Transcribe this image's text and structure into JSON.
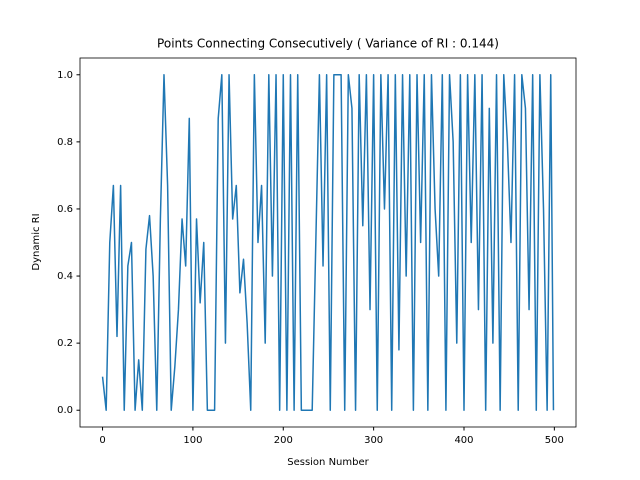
{
  "chart_data": {
    "type": "line",
    "title": "Points Connecting Consecutively ( Variance of RI : 0.144)",
    "xlabel": "Session Number",
    "ylabel": "Dynamic RI",
    "x": [
      0,
      4,
      8,
      12,
      16,
      20,
      24,
      28,
      32,
      36,
      40,
      44,
      48,
      52,
      56,
      60,
      64,
      68,
      72,
      76,
      80,
      84,
      88,
      92,
      96,
      100,
      104,
      108,
      112,
      116,
      120,
      124,
      128,
      132,
      136,
      140,
      144,
      148,
      152,
      156,
      160,
      164,
      168,
      172,
      176,
      180,
      184,
      188,
      192,
      196,
      200,
      204,
      208,
      212,
      216,
      220,
      224,
      228,
      232,
      236,
      240,
      244,
      248,
      252,
      256,
      260,
      264,
      268,
      272,
      276,
      280,
      284,
      288,
      292,
      296,
      300,
      304,
      308,
      312,
      316,
      320,
      324,
      328,
      332,
      336,
      340,
      344,
      348,
      352,
      356,
      360,
      364,
      368,
      372,
      376,
      380,
      384,
      388,
      392,
      396,
      400,
      404,
      408,
      412,
      416,
      420,
      424,
      428,
      432,
      436,
      440,
      444,
      448,
      452,
      456,
      460,
      464,
      468,
      472,
      476,
      480,
      484,
      488,
      492,
      496,
      499
    ],
    "values": [
      0.1,
      0,
      0.5,
      0.67,
      0.22,
      0.67,
      0,
      0.43,
      0.5,
      0,
      0.15,
      0,
      0.48,
      0.58,
      0.4,
      0,
      0.57,
      1.0,
      0.67,
      0,
      0.13,
      0.3,
      0.57,
      0.43,
      0.87,
      0,
      0.57,
      0.32,
      0.5,
      0,
      0,
      0,
      0.87,
      1,
      0.2,
      1,
      0.57,
      0.67,
      0.35,
      0.45,
      0.26,
      0,
      1,
      0.5,
      0.67,
      0.2,
      1,
      0.4,
      1,
      0,
      1,
      0,
      1,
      0,
      1,
      0,
      0,
      0,
      0,
      0.5,
      1,
      0.43,
      1,
      0,
      1,
      1,
      1,
      0,
      1,
      0.9,
      0,
      1,
      0.55,
      1,
      0.3,
      1,
      0,
      1,
      0.6,
      1,
      0,
      1,
      0.18,
      1,
      0.4,
      1,
      0,
      1,
      0.5,
      1,
      0,
      1,
      0.6,
      0.4,
      1,
      0,
      1,
      0.8,
      0.2,
      1,
      0,
      1,
      0.5,
      1,
      0.3,
      1,
      0,
      0.9,
      0.2,
      1,
      0,
      1,
      0.8,
      0.5,
      1,
      0,
      1,
      0.9,
      0.3,
      1,
      0,
      1,
      0.6,
      0,
      1,
      0
    ],
    "color": "#1f77b4",
    "xlim": [
      -24.95,
      523.95
    ],
    "ylim": [
      -0.05,
      1.05
    ],
    "xticks": [
      0,
      100,
      200,
      300,
      400,
      500
    ],
    "yticks": [
      {
        "value": 0,
        "label": "0.0"
      },
      {
        "value": 0.2,
        "label": "0.2"
      },
      {
        "value": 0.4,
        "label": "0.4"
      },
      {
        "value": 0.6,
        "label": "0.6"
      },
      {
        "value": 0.8,
        "label": "0.8"
      },
      {
        "value": 1,
        "label": "1.0"
      }
    ]
  }
}
